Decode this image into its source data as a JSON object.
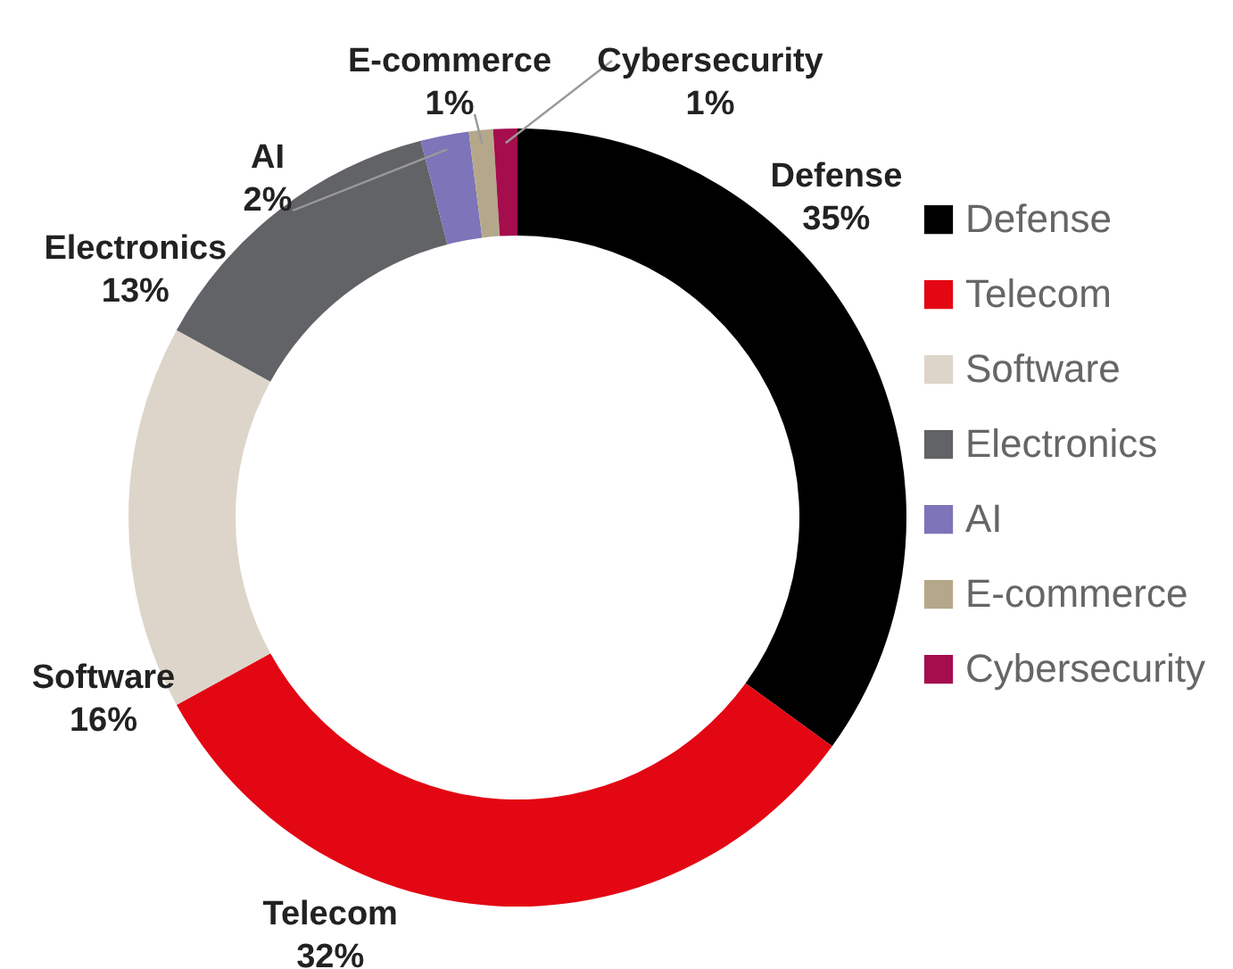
{
  "chart_data": {
    "type": "donut",
    "categories": [
      "Defense",
      "Telecom",
      "Software",
      "Electronics",
      "AI",
      "E-commerce",
      "Cybersecurity"
    ],
    "values": [
      35,
      32,
      16,
      13,
      2,
      1,
      1
    ],
    "value_labels": [
      "35%",
      "32%",
      "16%",
      "13%",
      "2%",
      "1%",
      "1%"
    ],
    "colors": [
      "#000000",
      "#e30613",
      "#ddd5c9",
      "#626366",
      "#7d74b9",
      "#b5a88a",
      "#a50d4d"
    ],
    "legend": "right"
  }
}
